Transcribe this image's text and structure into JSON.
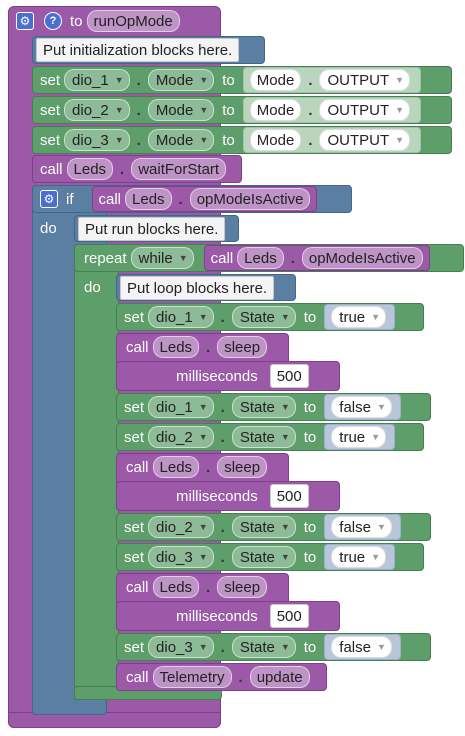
{
  "header": {
    "to": "to",
    "name": "runOpMode"
  },
  "init_comment": "Put initialization blocks here.",
  "set_mode": [
    {
      "set": "set",
      "device": "dio_1",
      "prop": "Mode",
      "to": "to",
      "enum": "Mode",
      "value": "OUTPUT"
    },
    {
      "set": "set",
      "device": "dio_2",
      "prop": "Mode",
      "to": "to",
      "enum": "Mode",
      "value": "OUTPUT"
    },
    {
      "set": "set",
      "device": "dio_3",
      "prop": "Mode",
      "to": "to",
      "enum": "Mode",
      "value": "OUTPUT"
    }
  ],
  "wait": {
    "call": "call",
    "obj": "Leds",
    "method": "waitForStart"
  },
  "if_block": {
    "if": "if",
    "do": "do",
    "call": "call",
    "obj": "Leds",
    "method": "opModeIsActive"
  },
  "run_comment": "Put run blocks here.",
  "repeat": {
    "repeat": "repeat",
    "mode": "while",
    "do": "do",
    "call": "call",
    "obj": "Leds",
    "method": "opModeIsActive"
  },
  "loop_comment": "Put loop blocks here.",
  "loop": {
    "s1": {
      "set": "set",
      "device": "dio_1",
      "prop": "State",
      "to": "to",
      "value": "true"
    },
    "sleep1": {
      "call": "call",
      "obj": "Leds",
      "method": "sleep",
      "param": "milliseconds",
      "ms": "500"
    },
    "s2": {
      "set": "set",
      "device": "dio_1",
      "prop": "State",
      "to": "to",
      "value": "false"
    },
    "s3": {
      "set": "set",
      "device": "dio_2",
      "prop": "State",
      "to": "to",
      "value": "true"
    },
    "sleep2": {
      "call": "call",
      "obj": "Leds",
      "method": "sleep",
      "param": "milliseconds",
      "ms": "500"
    },
    "s4": {
      "set": "set",
      "device": "dio_2",
      "prop": "State",
      "to": "to",
      "value": "false"
    },
    "s5": {
      "set": "set",
      "device": "dio_3",
      "prop": "State",
      "to": "to",
      "value": "true"
    },
    "sleep3": {
      "call": "call",
      "obj": "Leds",
      "method": "sleep",
      "param": "milliseconds",
      "ms": "500"
    },
    "s6": {
      "set": "set",
      "device": "dio_3",
      "prop": "State",
      "to": "to",
      "value": "false"
    },
    "telemetry": {
      "call": "call",
      "obj": "Telemetry",
      "method": "update"
    }
  },
  "icons": {
    "gear": "gear-icon",
    "help": "help-icon",
    "dropdown": "dropdown-arrow-icon"
  },
  "colors": {
    "procedure": "#9b59a8",
    "set": "#5d9e6a",
    "control": "#5b7fa3",
    "repeat": "#5d9e6a"
  }
}
